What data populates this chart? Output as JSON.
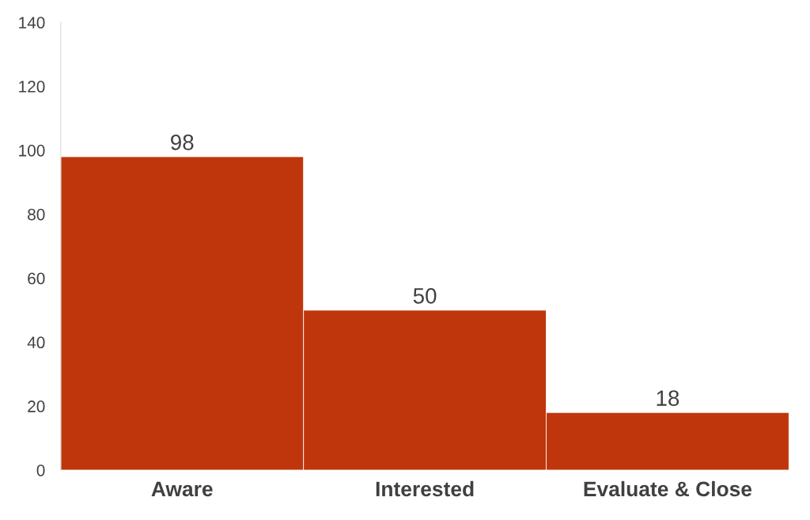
{
  "chart_data": {
    "type": "bar",
    "categories": [
      "Aware",
      "Interested",
      "Evaluate & Close"
    ],
    "values": [
      98,
      50,
      18
    ],
    "color": "#bf360c",
    "ylim": [
      0,
      140
    ],
    "yticks": [
      0,
      20,
      40,
      60,
      80,
      100,
      120,
      140
    ],
    "data_labels": true,
    "grid": false
  }
}
